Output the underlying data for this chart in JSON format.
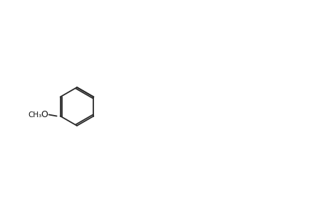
{
  "background_color": "#ffffff",
  "line_color": "#333333",
  "text_color": "#000000",
  "line_width": 1.5,
  "font_size": 9,
  "fig_width": 4.6,
  "fig_height": 3.0,
  "dpi": 100
}
